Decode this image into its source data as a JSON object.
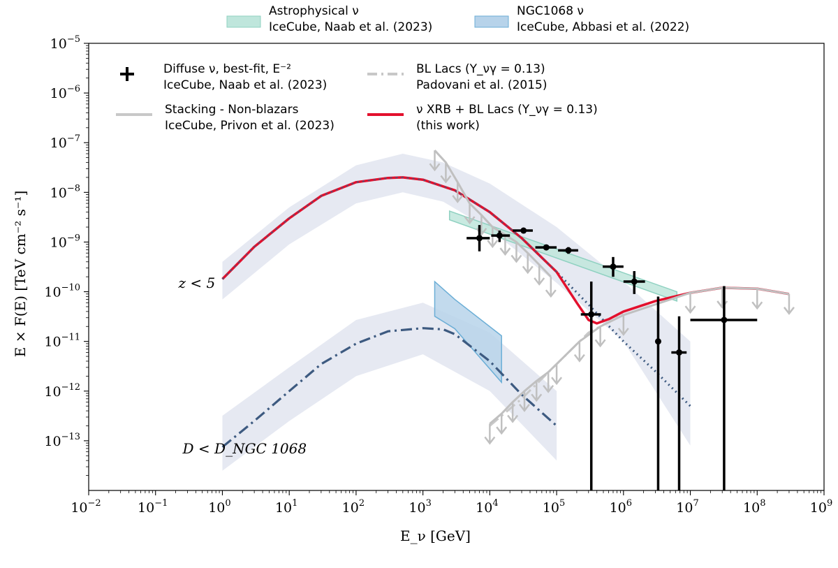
{
  "chart_data": {
    "type": "line",
    "xscale": "log",
    "yscale": "log",
    "xlim": [
      0.01,
      1000000000
    ],
    "ylim": [
      1e-14,
      1e-05
    ],
    "xlabel": "E_ν [GeV]",
    "ylabel": "E × F(E) [TeV cm⁻² s⁻¹]",
    "x_ticks": [
      {
        "base": "10",
        "exp": "−2",
        "value": 0.01
      },
      {
        "base": "10",
        "exp": "−1",
        "value": 0.1
      },
      {
        "base": "10",
        "exp": "0",
        "value": 1
      },
      {
        "base": "10",
        "exp": "1",
        "value": 10
      },
      {
        "base": "10",
        "exp": "2",
        "value": 100
      },
      {
        "base": "10",
        "exp": "3",
        "value": 1000
      },
      {
        "base": "10",
        "exp": "4",
        "value": 10000
      },
      {
        "base": "10",
        "exp": "5",
        "value": 100000
      },
      {
        "base": "10",
        "exp": "6",
        "value": 1000000
      },
      {
        "base": "10",
        "exp": "7",
        "value": 10000000
      },
      {
        "base": "10",
        "exp": "8",
        "value": 100000000
      },
      {
        "base": "10",
        "exp": "9",
        "value": 1000000000
      }
    ],
    "y_ticks": [
      {
        "base": "10",
        "exp": "−13",
        "value": 1e-13
      },
      {
        "base": "10",
        "exp": "−12",
        "value": 1e-12
      },
      {
        "base": "10",
        "exp": "−11",
        "value": 1e-11
      },
      {
        "base": "10",
        "exp": "−10",
        "value": 1e-10
      },
      {
        "base": "10",
        "exp": "−9",
        "value": 1e-09
      },
      {
        "base": "10",
        "exp": "−8",
        "value": 1e-08
      },
      {
        "base": "10",
        "exp": "−7",
        "value": 1e-07
      },
      {
        "base": "10",
        "exp": "−6",
        "value": 1e-06
      },
      {
        "base": "10",
        "exp": "−5",
        "value": 1e-05
      }
    ],
    "legend_top": [
      {
        "line1": "Astrophysical ν",
        "line2": "IceCube, Naab et al. (2023)",
        "color": "#bfe6dc",
        "edge": "#8fd1c1"
      },
      {
        "line1": "NGC1068 ν",
        "line2": "IceCube, Abbasi et al. (2022)",
        "color": "#b7d3ea",
        "edge": "#6baed6"
      }
    ],
    "legend_inner": [
      {
        "line1": "Diffuse ν, best-fit, E⁻²",
        "line2": "IceCube, Naab et al. (2023)",
        "marker": "cross",
        "color": "#000000"
      },
      {
        "line1": "Stacking - Non-blazars",
        "line2": "IceCube, Privon et al. (2023)",
        "marker": "line",
        "color": "#c8c8c8"
      },
      {
        "line1": "BL Lacs (Y_νγ = 0.13)",
        "line2": "Padovani et al. (2015)",
        "marker": "dashdot",
        "color": "#c8c8c8"
      },
      {
        "line1": "ν XRB + BL Lacs (Y_νγ = 0.13)",
        "line2": "(this work)",
        "marker": "line",
        "color": "#e3102d"
      }
    ],
    "annotations": [
      {
        "text": "z < 5",
        "x": 0.22,
        "y": 1.5e-10
      },
      {
        "text": "D < D_NGC 1068",
        "x": 0.28,
        "y": 7e-14
      }
    ],
    "colors": {
      "band": "#e6e9f2",
      "model_blue": "#3d5a80",
      "this_work": "#e3102d",
      "upper_limit": "#c0c0c0",
      "astro_band": "#bfe6dc",
      "ngc_band": "#b7d3ea",
      "ngc_edge": "#6baed6"
    },
    "series": [
      {
        "kind": "band",
        "color": "#e6e9f2",
        "x": [
          1,
          10,
          100,
          500,
          2000,
          10000,
          100000,
          1000000,
          10000000
        ],
        "upper": [
          4e-10,
          5e-09,
          3.5e-08,
          6e-08,
          4e-08,
          1.5e-08,
          2e-09,
          1.6e-10,
          1e-11
        ],
        "lower": [
          7e-11,
          9e-10,
          6e-09,
          1e-08,
          6.5e-09,
          1.8e-09,
          1.5e-10,
          1e-11,
          8e-14
        ]
      },
      {
        "kind": "band",
        "color": "#e6e9f2",
        "x": [
          1,
          10,
          100,
          1000,
          10000,
          100000
        ],
        "upper": [
          3.2e-13,
          3e-12,
          2.7e-11,
          6e-11,
          1.5e-11,
          1e-12
        ],
        "lower": [
          2.5e-14,
          2.5e-13,
          2e-12,
          5.5e-12,
          1e-12,
          4e-14
        ]
      },
      {
        "kind": "band",
        "color": "#bfe6dc",
        "edge": "#8fd1c1",
        "x": [
          2500,
          6300000
        ],
        "upper": [
          4.2e-09,
          1e-10
        ],
        "lower": [
          2.8e-09,
          6.5e-11
        ]
      },
      {
        "kind": "band",
        "color": "#b7d3ea",
        "edge": "#6baed6",
        "x": [
          1500,
          3000,
          15000
        ],
        "upper": [
          1.6e-10,
          7e-11,
          1.3e-11
        ],
        "lower": [
          3.2e-11,
          1.8e-11,
          1.5e-12
        ]
      },
      {
        "kind": "line",
        "style": "dotted",
        "color": "#3d5a80",
        "width": 3.2,
        "x": [
          1,
          3,
          10,
          30,
          100,
          300,
          500,
          1000,
          3000,
          10000,
          30000,
          100000,
          300000,
          1000000,
          3000000,
          10000000
        ],
        "y": [
          1.8e-10,
          8e-10,
          3e-09,
          8.5e-09,
          1.6e-08,
          1.95e-08,
          2e-08,
          1.8e-08,
          1.1e-08,
          4e-09,
          1.2e-09,
          2.5e-10,
          5.5e-11,
          1e-11,
          2.5e-12,
          5e-13
        ]
      },
      {
        "kind": "line",
        "style": "solid",
        "color": "#e3102d",
        "width": 3.5,
        "x": [
          1,
          3,
          10,
          30,
          100,
          300,
          500,
          1000,
          3000,
          10000,
          30000,
          100000,
          200000,
          300000,
          400000,
          600000,
          1000000,
          3000000,
          10000000,
          30000000,
          100000000,
          300000000
        ],
        "y": [
          1.8e-10,
          8e-10,
          3e-09,
          8.5e-09,
          1.6e-08,
          1.95e-08,
          2e-08,
          1.8e-08,
          1.1e-08,
          4e-09,
          1.2e-09,
          2.5e-10,
          6e-11,
          2.7e-11,
          2.3e-11,
          2.8e-11,
          4e-11,
          6.5e-11,
          9.5e-11,
          1.2e-10,
          1.15e-10,
          9e-11
        ]
      },
      {
        "kind": "line",
        "style": "dashdot",
        "color": "#3d5a80",
        "width": 3.2,
        "x": [
          1,
          3,
          10,
          30,
          100,
          300,
          1000,
          2000,
          3000,
          10000,
          30000,
          100000
        ],
        "y": [
          7.5e-14,
          2.5e-13,
          1e-12,
          3.5e-12,
          9e-12,
          1.6e-11,
          1.85e-11,
          1.75e-11,
          1.4e-11,
          4e-12,
          8.5e-13,
          2e-13
        ]
      },
      {
        "kind": "line",
        "style": "dashdot",
        "color": "#c8c8c8",
        "width": 3,
        "x": [
          10000,
          30000,
          100000,
          300000,
          1000000
        ],
        "y": [
          2e-13,
          7e-13,
          3.5e-12,
          1.5e-11,
          3.5e-11
        ]
      },
      {
        "kind": "upper_limits",
        "color": "#c0c0c0",
        "points": [
          {
            "x": 1500,
            "y": 7e-08
          },
          {
            "x": 2200,
            "y": 4e-08
          },
          {
            "x": 3300,
            "y": 1.6e-08
          },
          {
            "x": 5000,
            "y": 6e-09
          },
          {
            "x": 7500,
            "y": 3.5e-09
          },
          {
            "x": 11000,
            "y": 2e-09
          },
          {
            "x": 17000,
            "y": 1.4e-09
          },
          {
            "x": 25000,
            "y": 1e-09
          },
          {
            "x": 37000,
            "y": 6e-10
          },
          {
            "x": 55000,
            "y": 3.5e-10
          },
          {
            "x": 82000,
            "y": 2e-10
          }
        ]
      },
      {
        "kind": "upper_limits",
        "color": "#c0c0c0",
        "points": [
          {
            "x": 10000,
            "y": 2.2e-13
          },
          {
            "x": 15000,
            "y": 3.5e-13
          },
          {
            "x": 22000,
            "y": 6e-13
          },
          {
            "x": 33000,
            "y": 1e-12
          },
          {
            "x": 50000,
            "y": 1.6e-12
          },
          {
            "x": 75000,
            "y": 2.4e-12
          },
          {
            "x": 100000,
            "y": 3.5e-12
          },
          {
            "x": 220000,
            "y": 1e-11
          },
          {
            "x": 450000,
            "y": 2e-11
          },
          {
            "x": 1000000,
            "y": 3.4e-11
          },
          {
            "x": 10000000,
            "y": 9.5e-11
          },
          {
            "x": 30000000,
            "y": 1.2e-10
          },
          {
            "x": 100000000,
            "y": 1.15e-10
          },
          {
            "x": 300000000,
            "y": 9e-11
          }
        ]
      },
      {
        "kind": "errorbar",
        "color": "#000000",
        "points": [
          {
            "x": 7000,
            "y": 1.2e-09,
            "xlo": 4500,
            "xhi": 10000,
            "ylo": 6.5e-10,
            "yhi": 2.2e-09
          },
          {
            "x": 14000,
            "y": 1.35e-09,
            "xlo": 10500,
            "xhi": 20000,
            "ylo": 1e-09,
            "yhi": 1.7e-09
          },
          {
            "x": 32000,
            "y": 1.7e-09,
            "xlo": 22000,
            "xhi": 44000,
            "ylo": 1.55e-09,
            "yhi": 1.85e-09
          },
          {
            "x": 70000,
            "y": 7.8e-10,
            "xlo": 48000,
            "xhi": 100000,
            "ylo": 6.9e-10,
            "yhi": 8.8e-10
          },
          {
            "x": 150000,
            "y": 6.8e-10,
            "xlo": 105000,
            "xhi": 210000,
            "ylo": 5.8e-10,
            "yhi": 7.9e-10
          },
          {
            "x": 330000,
            "y": 3.5e-11,
            "xlo": 230000,
            "xhi": 460000,
            "ylo": 1e-14,
            "yhi": 1.6e-10
          },
          {
            "x": 700000,
            "y": 3.2e-10,
            "xlo": 490000,
            "xhi": 1000000,
            "ylo": 2e-10,
            "yhi": 5e-10
          },
          {
            "x": 1450000,
            "y": 1.6e-10,
            "xlo": 1000000,
            "xhi": 2100000,
            "ylo": 9e-11,
            "yhi": 2.6e-10
          },
          {
            "x": 3300000,
            "y": 1e-11,
            "xlo": 3300000,
            "xhi": 3300000,
            "ylo": 1e-14,
            "yhi": 8e-11
          },
          {
            "x": 6800000,
            "y": 6e-12,
            "xlo": 5200000,
            "xhi": 8800000,
            "ylo": 1e-14,
            "yhi": 3.2e-11
          },
          {
            "x": 32000000,
            "y": 2.7e-11,
            "xlo": 10000000,
            "xhi": 100000000,
            "ylo": 1e-14,
            "yhi": 1.3e-10
          }
        ]
      }
    ]
  }
}
